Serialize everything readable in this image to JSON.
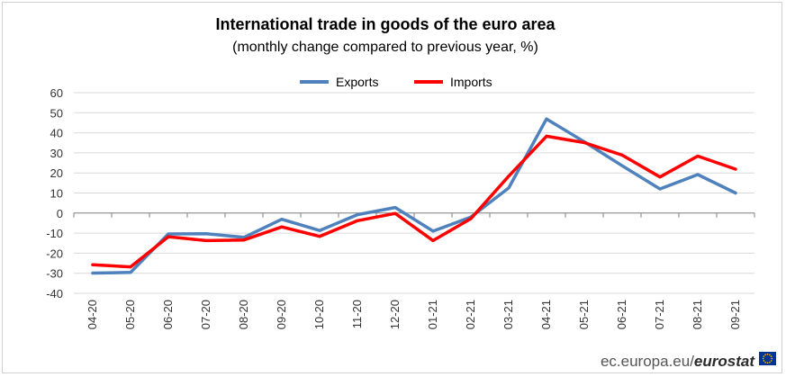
{
  "chart_data": {
    "type": "line",
    "title": "International trade in goods of the euro area",
    "subtitle": "(monthly change compared to previous year, %)",
    "xlabel": "",
    "ylabel": "",
    "ylim": [
      -40,
      60
    ],
    "yticks": [
      60,
      50,
      40,
      30,
      20,
      10,
      0,
      -10,
      -20,
      -30,
      -40
    ],
    "grid": true,
    "legend_position": "top-center",
    "categories": [
      "04-20",
      "05-20",
      "06-20",
      "07-20",
      "08-20",
      "09-20",
      "10-20",
      "11-20",
      "12-20",
      "01-21",
      "02-21",
      "03-21",
      "04-21",
      "05-21",
      "06-21",
      "07-21",
      "08-21",
      "09-21"
    ],
    "series": [
      {
        "name": "Exports",
        "color": "#4f81bd",
        "values": [
          -29.9,
          -29.6,
          -10.4,
          -10.3,
          -12.1,
          -3.1,
          -8.7,
          -0.8,
          2.8,
          -9.0,
          -2.0,
          12.5,
          46.9,
          35.5,
          23.6,
          12.0,
          19.2,
          10.0
        ]
      },
      {
        "name": "Imports",
        "color": "#ff0000",
        "values": [
          -25.8,
          -26.8,
          -11.8,
          -13.7,
          -13.4,
          -6.9,
          -11.6,
          -3.8,
          -0.2,
          -13.7,
          -2.8,
          18.4,
          38.3,
          35.1,
          28.9,
          18.0,
          28.4,
          21.9
        ]
      }
    ]
  },
  "footer": {
    "url": "ec.europa.eu/",
    "brand": "eurostat"
  },
  "colors": {
    "grid": "#d9d9d9",
    "axis": "#7f7f7f",
    "eu_flag": "#003399",
    "eu_star": "#ffcc00"
  }
}
